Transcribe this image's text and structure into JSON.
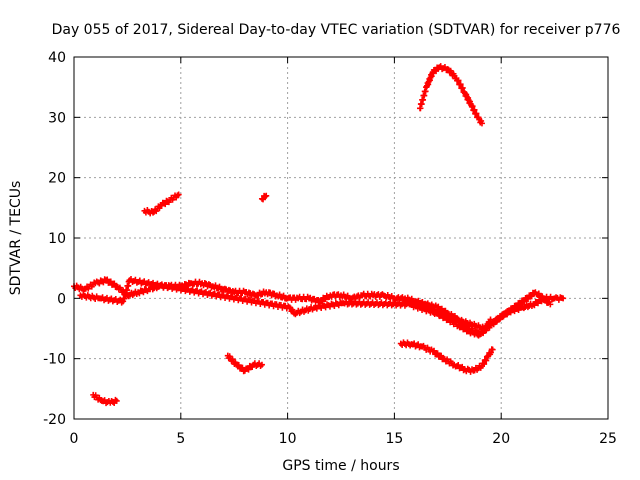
{
  "chart_data": {
    "type": "scatter",
    "title": "Day 055 of 2017, Sidereal Day-to-day VTEC variation (SDTVAR) for receiver p776",
    "xlabel": "GPS time / hours",
    "ylabel": "SDTVAR / TECUs",
    "xlim": [
      0,
      25
    ],
    "ylim": [
      -20,
      40
    ],
    "xticks": [
      0,
      5,
      10,
      15,
      20,
      25
    ],
    "yticks": [
      -20,
      -10,
      0,
      10,
      20,
      30,
      40
    ],
    "xtick_labels": [
      "0",
      "5",
      "10",
      "15",
      "20",
      "25"
    ],
    "ytick_labels": [
      "-20",
      "-10",
      "0",
      "10",
      "20",
      "30",
      "40"
    ],
    "grid": true,
    "marker": "plus",
    "color": "#ff0000",
    "series": [
      {
        "name": "main-band",
        "x": [
          0,
          0.5,
          1,
          1.5,
          2,
          2.5,
          3,
          3.5,
          4,
          4.5,
          5,
          5.5,
          6,
          6.5,
          7,
          7.5,
          8,
          8.5,
          9,
          9.5,
          10,
          10.5,
          11,
          11.5,
          12,
          12.5,
          13,
          13.5,
          14,
          14.5,
          15,
          15.5,
          16,
          16.5,
          17,
          17.5,
          18,
          18.5,
          19,
          19.5,
          20,
          20.5,
          21,
          21.5,
          22,
          22.5,
          22.9
        ],
        "y": [
          2,
          1.5,
          2.5,
          3,
          2,
          0.5,
          1,
          1.5,
          2,
          2,
          2,
          2.5,
          2.5,
          2,
          1.5,
          1,
          1,
          0.5,
          1,
          0.5,
          0,
          0,
          0,
          -0.5,
          0.5,
          0.5,
          0,
          0.5,
          0.5,
          0.5,
          0,
          0,
          -0.5,
          -1,
          -1.5,
          -2.5,
          -3.5,
          -5,
          -6,
          -4.5,
          -3,
          -2,
          -1.5,
          -1,
          0,
          0,
          0
        ]
      },
      {
        "name": "lower-branch",
        "x": [
          15.5,
          16,
          16.5,
          17,
          17.5,
          18,
          18.5,
          19,
          19.3,
          19.5
        ],
        "y": [
          -0.5,
          -1,
          -1.5,
          -2.5,
          -3.5,
          -4.5,
          -5.5,
          -6,
          -5,
          -3.5
        ]
      },
      {
        "name": "scatter-noise",
        "x": [
          0.3,
          1.2,
          2.3,
          2.6,
          10.1,
          10.3,
          11.3,
          12.6,
          15.7,
          19.2,
          19.6,
          21.6,
          22.3
        ],
        "y": [
          0.5,
          0,
          -0.5,
          3,
          -1.5,
          -2.5,
          -1.5,
          -0.8,
          -1,
          -5,
          -4,
          1,
          -1
        ]
      },
      {
        "name": "arc-high",
        "x": [
          16.2,
          16.5,
          16.8,
          17.1,
          17.5,
          17.9,
          18.3,
          18.6,
          18.9,
          19.1
        ],
        "y": [
          31.5,
          35,
          37.5,
          38.3,
          38,
          36.5,
          34,
          32,
          30,
          29
        ]
      },
      {
        "name": "neg-dip",
        "x": [
          15.3,
          15.8,
          16.3,
          16.8,
          17.3,
          17.8,
          18.3,
          18.7,
          19.1,
          19.4,
          19.6
        ],
        "y": [
          -7.5,
          -7.6,
          -8,
          -8.8,
          -10,
          -11,
          -11.8,
          -12,
          -11.2,
          -9.5,
          -8.5
        ]
      },
      {
        "name": "seg-1",
        "x": [
          3.3,
          3.7,
          4.1,
          4.5,
          4.9
        ],
        "y": [
          14.5,
          14.2,
          15.5,
          16.3,
          17.2
        ]
      },
      {
        "name": "seg-2",
        "x": [
          8.8,
          9.0
        ],
        "y": [
          16.5,
          17
        ]
      },
      {
        "name": "seg-3",
        "x": [
          7.2,
          7.6,
          8.0,
          8.4,
          8.8
        ],
        "y": [
          -9.5,
          -11,
          -12,
          -11,
          -11
        ]
      },
      {
        "name": "seg-4",
        "x": [
          0.9,
          1.3,
          1.7,
          2.0
        ],
        "y": [
          -16,
          -17,
          -17.3,
          -17
        ]
      }
    ]
  }
}
